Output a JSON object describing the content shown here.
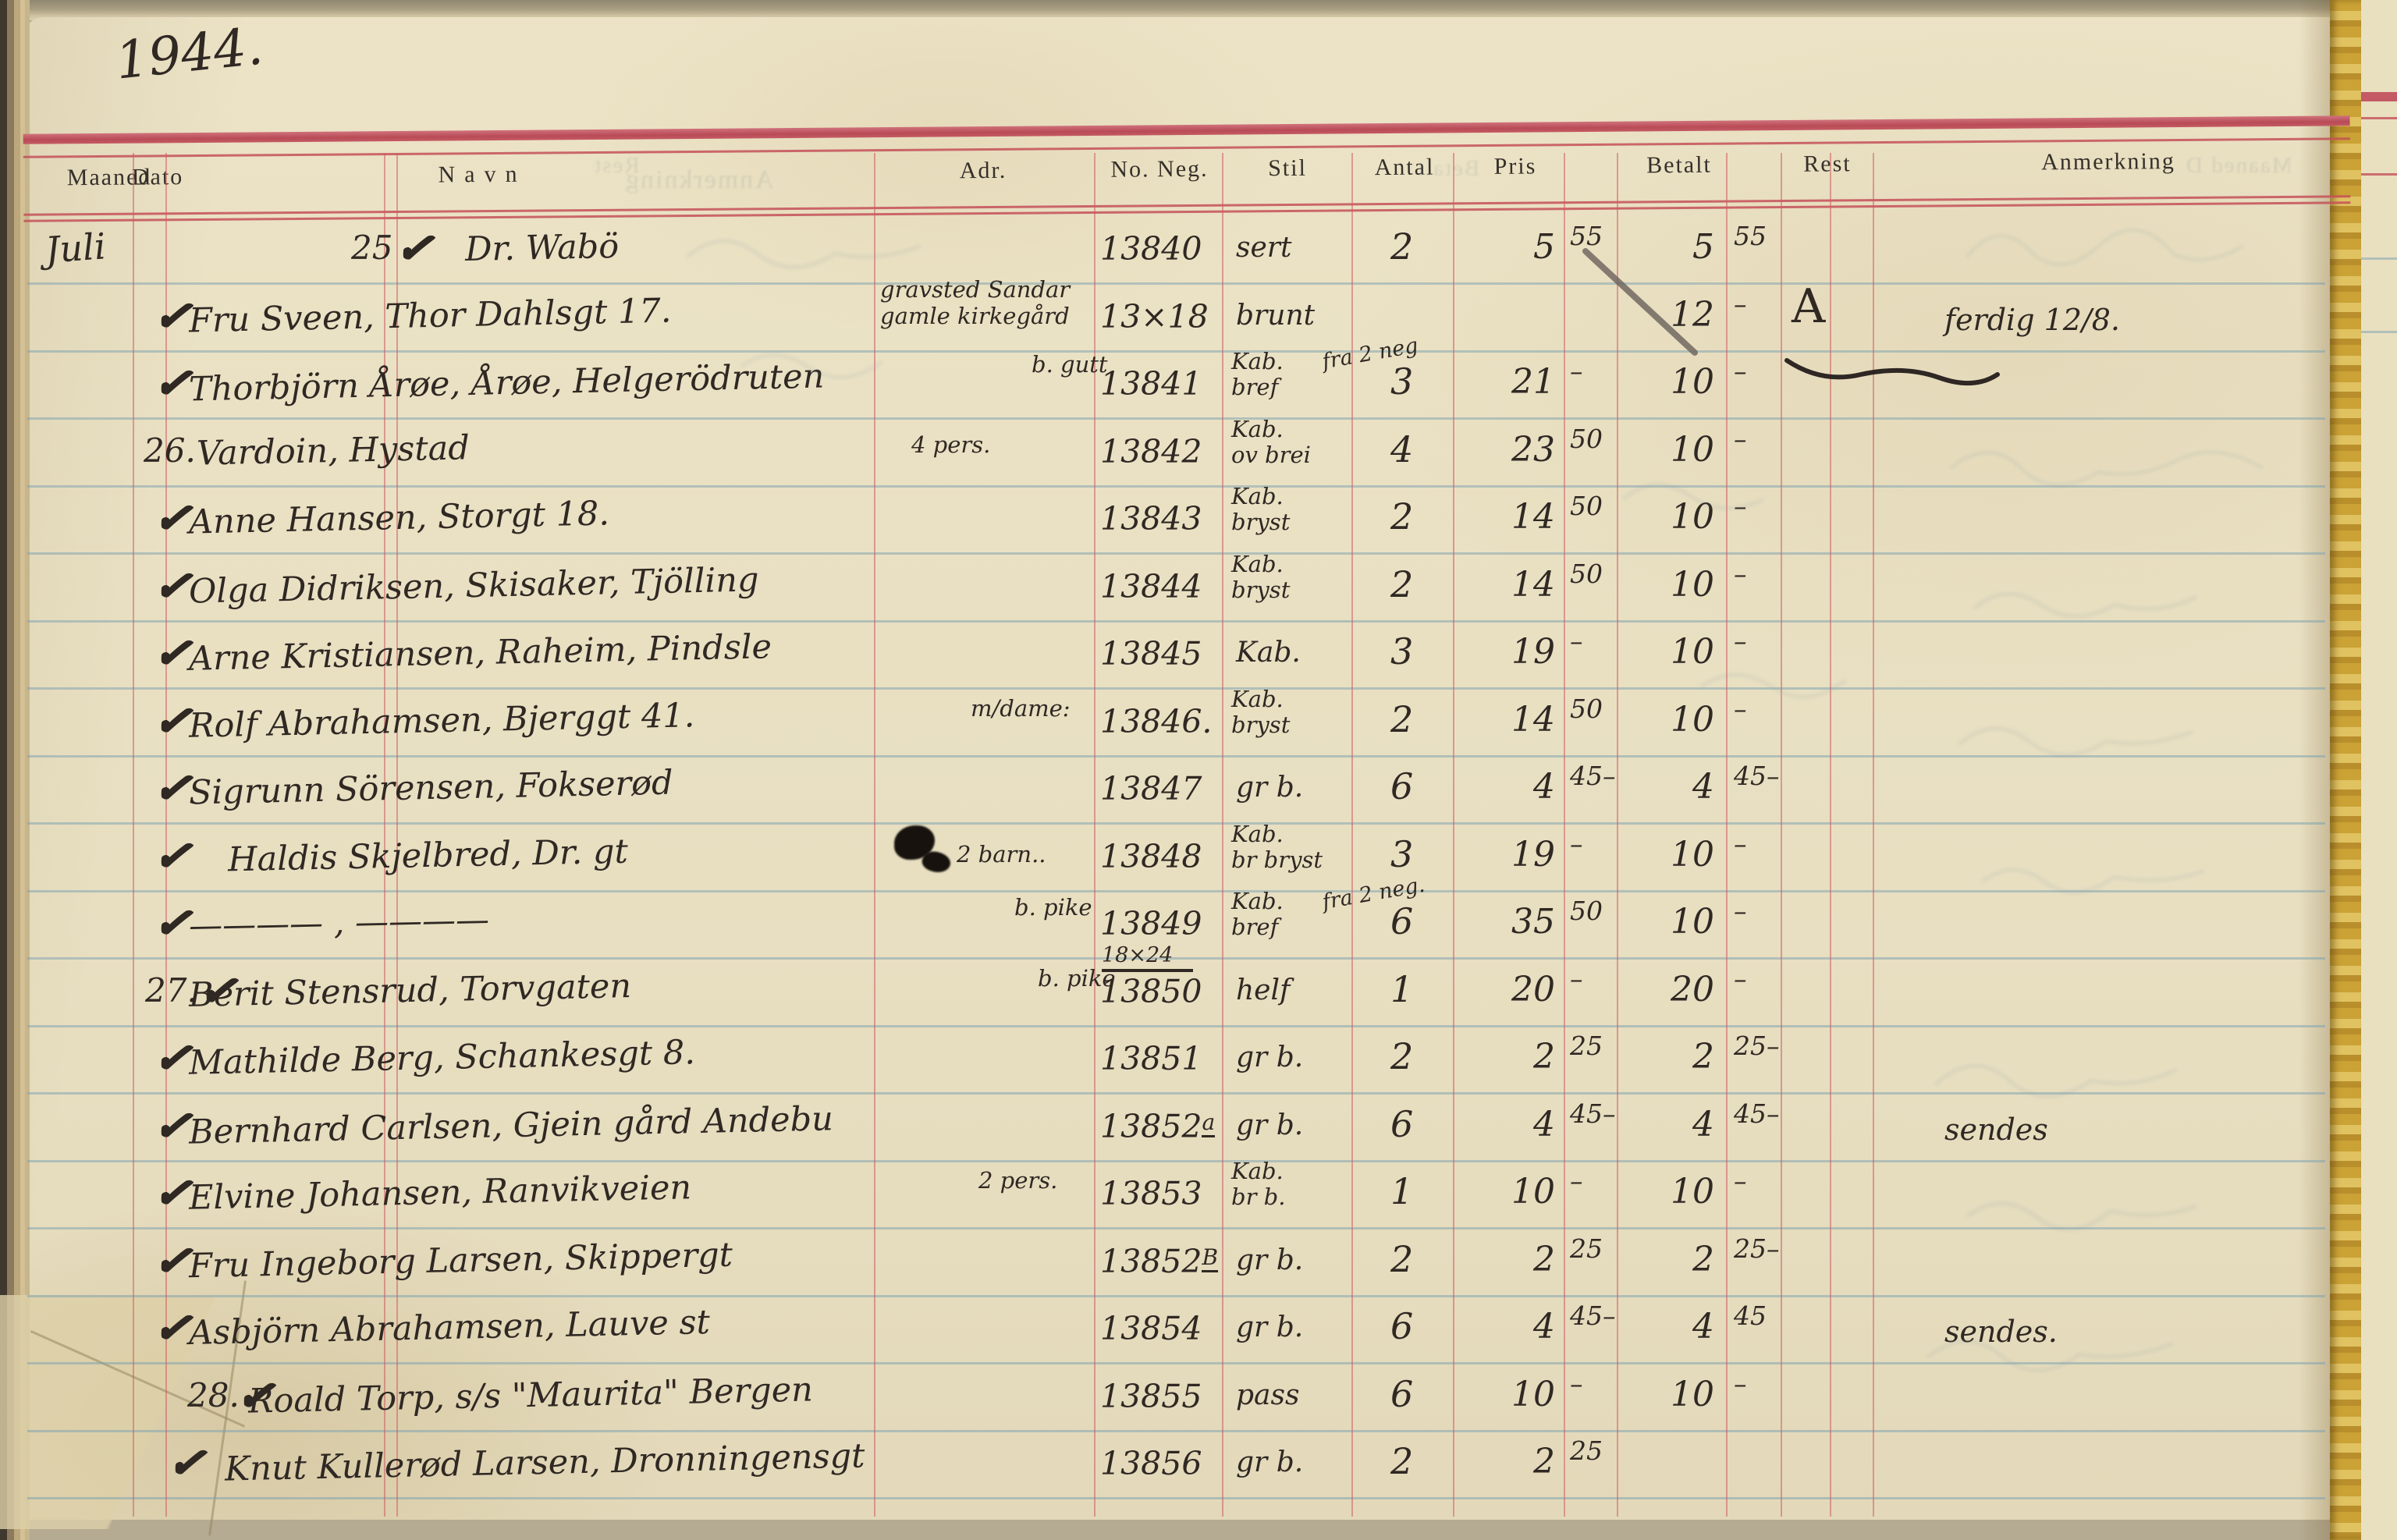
{
  "page": {
    "year": "1944."
  },
  "headers": [
    "Maaned",
    "Dato",
    "Navn",
    "Adr.",
    "No. Neg.",
    "Stil",
    "Antal",
    "Pris",
    "Betalt",
    "Rest",
    "Anmerkning"
  ],
  "bleedthrough": [
    {
      "text": "Anmerkning"
    },
    {
      "text": "Rest"
    },
    {
      "text": "Betalt"
    },
    {
      "text": "Maaned D"
    }
  ],
  "rows": [
    {
      "maaned": "Juli",
      "dato": "25",
      "check": true,
      "navn": "Dr. Wabö",
      "adr_note": [],
      "no_neg": "13840",
      "no_neg_sup": "",
      "no_neg_note": "",
      "stil": [
        "sert"
      ],
      "stil_note": "",
      "antal": "2",
      "pris": [
        "5",
        "55"
      ],
      "betalt": [
        "5",
        "55"
      ],
      "rest": "",
      "anm": ""
    },
    {
      "maaned": "",
      "dato": "",
      "check": true,
      "navn": "Fru Sveen, Thor Dahlsgt 17.",
      "adr_note": [
        "gravsted Sandar",
        "gamle kirkegård"
      ],
      "no_neg": "13×18",
      "no_neg_sup": "",
      "no_neg_note": "",
      "stil": [
        "brunt"
      ],
      "stil_note": "",
      "antal": "",
      "pris": [
        "",
        ""
      ],
      "betalt": [
        "12",
        "–"
      ],
      "rest": "A",
      "anm": "ferdig 12/8."
    },
    {
      "maaned": "",
      "dato": "",
      "check": true,
      "navn": "Thorbjörn Årøe, Årøe, Helgerödruten",
      "adr_note": [
        "b. gutt"
      ],
      "no_neg": "13841",
      "no_neg_sup": "",
      "no_neg_note": "",
      "stil": [
        "Kab.",
        "bref"
      ],
      "stil_note": "fra 2 neg",
      "antal": "3",
      "pris": [
        "21",
        "–"
      ],
      "betalt": [
        "10",
        "–"
      ],
      "rest": "",
      "anm": ""
    },
    {
      "maaned": "",
      "dato": "26.",
      "check": false,
      "navn": "Vardoin, Hystad",
      "adr_note": [
        "4 pers."
      ],
      "no_neg": "13842",
      "no_neg_sup": "",
      "no_neg_note": "",
      "stil": [
        "Kab.",
        "ov brei"
      ],
      "stil_note": "",
      "antal": "4",
      "pris": [
        "23",
        "50"
      ],
      "betalt": [
        "10",
        "–"
      ],
      "rest": "",
      "anm": ""
    },
    {
      "maaned": "",
      "dato": "",
      "check": true,
      "navn": "Anne Hansen, Storgt 18.",
      "adr_note": [],
      "no_neg": "13843",
      "no_neg_sup": "",
      "no_neg_note": "",
      "stil": [
        "Kab.",
        "bryst"
      ],
      "stil_note": "",
      "antal": "2",
      "pris": [
        "14",
        "50"
      ],
      "betalt": [
        "10",
        "–"
      ],
      "rest": "",
      "anm": ""
    },
    {
      "maaned": "",
      "dato": "",
      "check": true,
      "navn": "Olga Didriksen, Skisaker, Tjölling",
      "adr_note": [],
      "no_neg": "13844",
      "no_neg_sup": "",
      "no_neg_note": "",
      "stil": [
        "Kab.",
        "bryst"
      ],
      "stil_note": "",
      "antal": "2",
      "pris": [
        "14",
        "50"
      ],
      "betalt": [
        "10",
        "–"
      ],
      "rest": "",
      "anm": ""
    },
    {
      "maaned": "",
      "dato": "",
      "check": true,
      "navn": "Arne Kristiansen, Raheim, Pindsle",
      "adr_note": [],
      "no_neg": "13845",
      "no_neg_sup": "",
      "no_neg_note": "",
      "stil": [
        "Kab."
      ],
      "stil_note": "",
      "antal": "3",
      "pris": [
        "19",
        "–"
      ],
      "betalt": [
        "10",
        "–"
      ],
      "rest": "",
      "anm": ""
    },
    {
      "maaned": "",
      "dato": "",
      "check": true,
      "navn": "Rolf Abrahamsen, Bjerggt 41.",
      "adr_note": [
        "m/dame:"
      ],
      "no_neg": "13846.",
      "no_neg_sup": "",
      "no_neg_note": "",
      "stil": [
        "Kab.",
        "bryst"
      ],
      "stil_note": "",
      "antal": "2",
      "pris": [
        "14",
        "50"
      ],
      "betalt": [
        "10",
        "–"
      ],
      "rest": "",
      "anm": ""
    },
    {
      "maaned": "",
      "dato": "",
      "check": true,
      "navn": "Sigrunn Sörensen, Fokserød",
      "adr_note": [],
      "no_neg": "13847",
      "no_neg_sup": "",
      "no_neg_note": "",
      "stil": [
        "gr b."
      ],
      "stil_note": "",
      "antal": "6",
      "pris": [
        "4",
        "45–"
      ],
      "betalt": [
        "4",
        "45–"
      ],
      "rest": "",
      "anm": ""
    },
    {
      "maaned": "",
      "dato": "",
      "check": true,
      "navn": "Haldis Skjelbred, Dr. gt",
      "adr_note": [
        "2 barn.."
      ],
      "no_neg": "13848",
      "no_neg_sup": "",
      "no_neg_note": "",
      "stil": [
        "Kab.",
        "br bryst"
      ],
      "stil_note": "",
      "antal": "3",
      "pris": [
        "19",
        "–"
      ],
      "betalt": [
        "10",
        "–"
      ],
      "rest": "",
      "anm": ""
    },
    {
      "maaned": "",
      "dato": "",
      "check": true,
      "navn": "———— , ————",
      "adr_note": [
        "b. pike"
      ],
      "no_neg": "13849",
      "no_neg_sup": "",
      "no_neg_note": "",
      "stil": [
        "Kab.",
        "bref"
      ],
      "stil_note": "fra 2 neg.",
      "antal": "6",
      "pris": [
        "35",
        "50"
      ],
      "betalt": [
        "10",
        "–"
      ],
      "rest": "",
      "anm": ""
    },
    {
      "maaned": "",
      "dato": "27.",
      "check": true,
      "navn": "Berit Stensrud, Torvgaten",
      "adr_note": [
        "b. pike"
      ],
      "no_neg": "13850",
      "no_neg_sup": "",
      "no_neg_note": "18×24",
      "stil": [
        "helf"
      ],
      "stil_note": "",
      "antal": "1",
      "pris": [
        "20",
        "–"
      ],
      "betalt": [
        "20",
        "–"
      ],
      "rest": "",
      "anm": ""
    },
    {
      "maaned": "",
      "dato": "",
      "check": true,
      "navn": "Mathilde Berg, Schankesgt 8.",
      "adr_note": [],
      "no_neg": "13851",
      "no_neg_sup": "",
      "no_neg_note": "",
      "stil": [
        "gr b."
      ],
      "stil_note": "",
      "antal": "2",
      "pris": [
        "2",
        "25"
      ],
      "betalt": [
        "2",
        "25–"
      ],
      "rest": "",
      "anm": ""
    },
    {
      "maaned": "",
      "dato": "",
      "check": true,
      "navn": "Bernhard Carlsen, Gjein gård Andebu",
      "adr_note": [],
      "no_neg": "13852",
      "no_neg_sup": "a",
      "no_neg_note": "",
      "stil": [
        "gr b."
      ],
      "stil_note": "",
      "antal": "6",
      "pris": [
        "4",
        "45–"
      ],
      "betalt": [
        "4",
        "45–"
      ],
      "rest": "",
      "anm": "sendes"
    },
    {
      "maaned": "",
      "dato": "",
      "check": true,
      "navn": "Elvine Johansen, Ranvikveien",
      "adr_note": [
        "2 pers."
      ],
      "no_neg": "13853",
      "no_neg_sup": "",
      "no_neg_note": "",
      "stil": [
        "Kab.",
        "br b."
      ],
      "stil_note": "",
      "antal": "1",
      "pris": [
        "10",
        "–"
      ],
      "betalt": [
        "10",
        "–"
      ],
      "rest": "",
      "anm": ""
    },
    {
      "maaned": "",
      "dato": "",
      "check": true,
      "navn": "Fru Ingeborg Larsen, Skippergt",
      "adr_note": [],
      "no_neg": "13852",
      "no_neg_sup": "B",
      "no_neg_note": "",
      "stil": [
        "gr b."
      ],
      "stil_note": "",
      "antal": "2",
      "pris": [
        "2",
        "25"
      ],
      "betalt": [
        "2",
        "25–"
      ],
      "rest": "",
      "anm": ""
    },
    {
      "maaned": "",
      "dato": "",
      "check": true,
      "navn": "Asbjörn Abrahamsen, Lauve st",
      "adr_note": [],
      "no_neg": "13854",
      "no_neg_sup": "",
      "no_neg_note": "",
      "stil": [
        "gr b."
      ],
      "stil_note": "",
      "antal": "6",
      "pris": [
        "4",
        "45–"
      ],
      "betalt": [
        "4",
        "45"
      ],
      "rest": "",
      "anm": "sendes."
    },
    {
      "maaned": "",
      "dato": "28.",
      "check": true,
      "navn": "Roald Torp, s/s \"Maurita\" Bergen",
      "adr_note": [],
      "no_neg": "13855",
      "no_neg_sup": "",
      "no_neg_note": "",
      "stil": [
        "pass"
      ],
      "stil_note": "",
      "antal": "6",
      "pris": [
        "10",
        "–"
      ],
      "betalt": [
        "10",
        "–"
      ],
      "rest": "",
      "anm": ""
    },
    {
      "maaned": "",
      "dato": "",
      "check": true,
      "navn": "Knut Kullerød Larsen, Dronningensgt",
      "adr_note": [],
      "no_neg": "13856",
      "no_neg_sup": "",
      "no_neg_note": "",
      "stil": [
        "gr b."
      ],
      "stil_note": "",
      "antal": "2",
      "pris": [
        "2",
        "25"
      ],
      "betalt": [
        "",
        ""
      ],
      "rest": "",
      "anm": ""
    }
  ]
}
